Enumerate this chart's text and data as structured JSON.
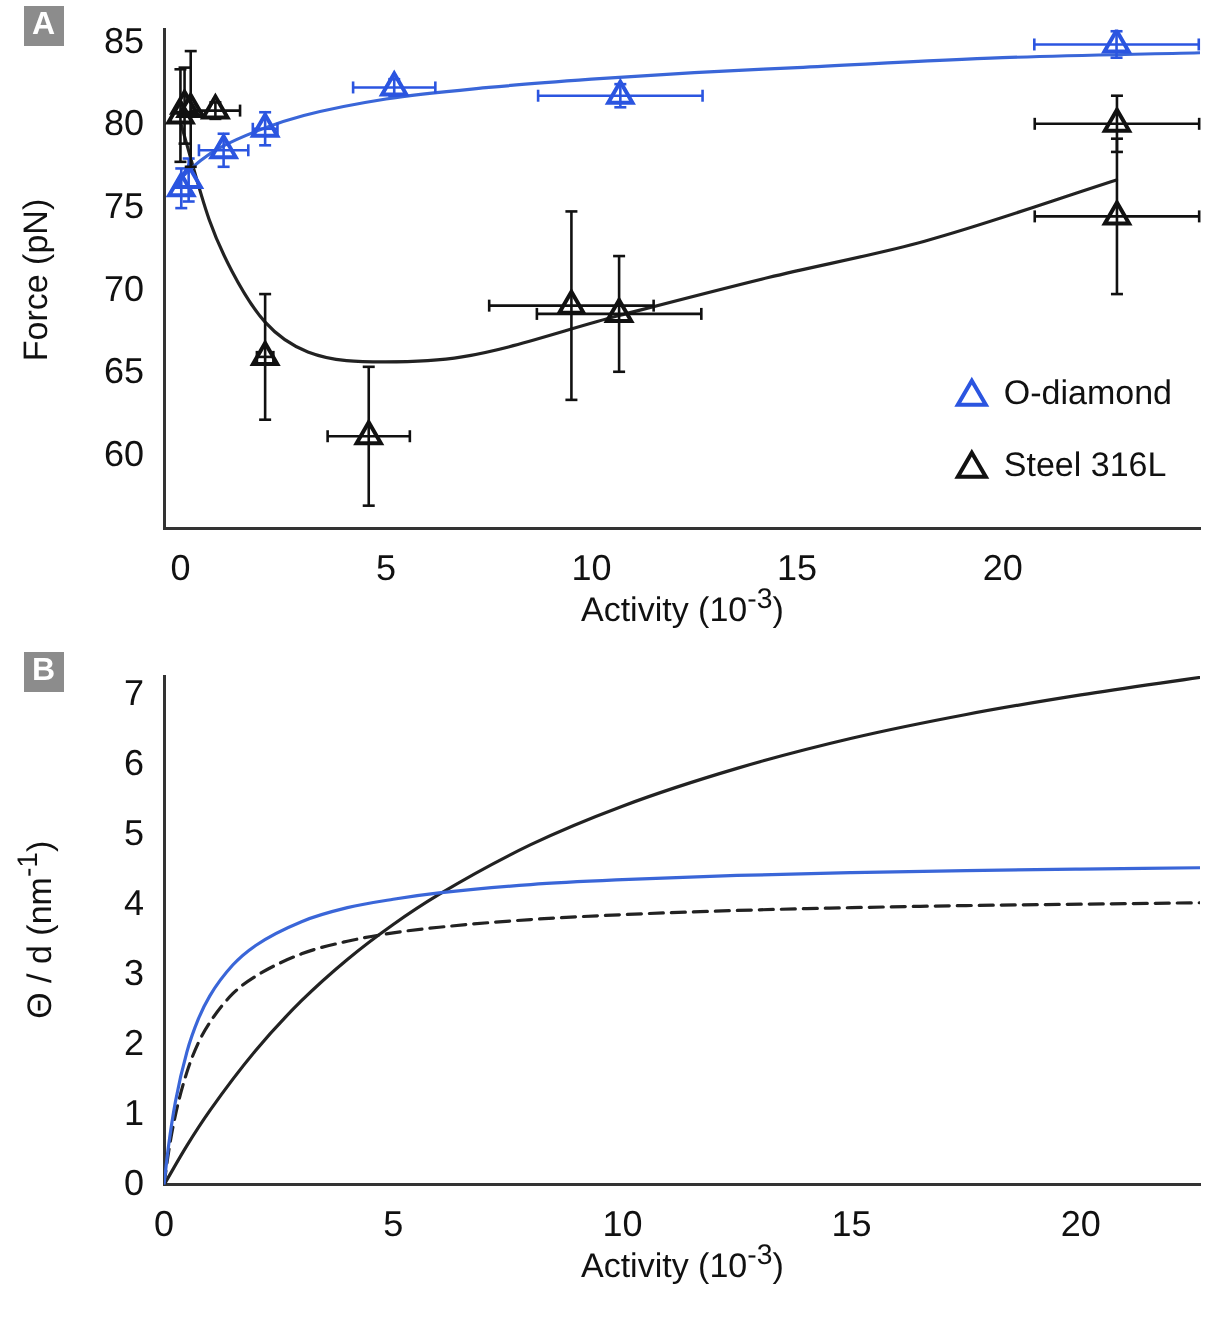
{
  "chart_data": [
    {
      "type": "scatter",
      "xlabel": "Activity (10$^{-3}$)",
      "ylabel": "Force (pN)",
      "annotations": [
        "A"
      ],
      "xlim": [
        -0.4,
        24.8
      ],
      "ylim": [
        55.6,
        85.8
      ],
      "xticks": [
        0,
        5,
        10,
        15,
        20
      ],
      "yticks": [
        60,
        65,
        70,
        75,
        80,
        85
      ],
      "legend": "bottom right",
      "series": [
        {
          "name": "O-diamond",
          "type": "scatter",
          "marker": "triangle",
          "color": "#2b55e0",
          "x": [
            0.02,
            0.2,
            1.05,
            2.06,
            5.2,
            10.7,
            22.77
          ],
          "values": [
            76.2,
            76.7,
            78.5,
            79.8,
            82.3,
            81.8,
            84.9
          ],
          "errors": [
            1.2,
            1.3,
            1.0,
            1.0,
            0.5,
            0.7,
            0.8
          ],
          "xerrors": [
            null,
            null,
            0.6,
            0.3,
            1.0,
            2.0,
            2.0
          ]
        },
        {
          "type": "line",
          "marker": "none",
          "color": "#3a66d8",
          "x": [
            0,
            0.5,
            1,
            2,
            3,
            5,
            7.5,
            10,
            12.5,
            15,
            20,
            24.8
          ],
          "values": [
            76.8,
            77.9,
            78.7,
            79.8,
            80.6,
            81.6,
            82.3,
            82.8,
            83.2,
            83.5,
            84.1,
            84.4
          ]
        },
        {
          "name": "Steel 316L",
          "type": "scatter",
          "marker": "triangle",
          "color": "#111111",
          "x": [
            0.0,
            0.1,
            0.25,
            0.85,
            2.06,
            4.58,
            9.51,
            10.67,
            22.78,
            22.78
          ],
          "values": [
            80.6,
            81.2,
            81.0,
            80.9,
            66.0,
            61.2,
            69.1,
            68.6,
            80.1,
            74.5
          ],
          "errors": [
            2.8,
            2.3,
            3.5,
            0.5,
            3.8,
            4.2,
            5.7,
            3.5,
            1.7,
            4.7
          ],
          "xerrors": [
            null,
            null,
            null,
            0.6,
            0.2,
            1.0,
            2.0,
            2.0,
            2.0,
            2.0
          ]
        },
        {
          "type": "line",
          "marker": "none",
          "color": "#222222",
          "x": [
            0,
            0.7,
            1.25,
            2.06,
            3.1,
            4.98,
            6.85,
            10.67,
            14.3,
            18.1,
            22.77
          ],
          "values": [
            80.2,
            74.3,
            71.2,
            68.1,
            66.3,
            65.7,
            66.0,
            68.5,
            70.8,
            73.0,
            76.7
          ]
        }
      ]
    },
    {
      "type": "line",
      "xlabel": "Activity (10$^{-3}$)",
      "ylabel": "Θ / d (nm$^{-1}$)",
      "annotations": [
        "B"
      ],
      "xlim": [
        0,
        22.6
      ],
      "ylim": [
        0,
        7.27
      ],
      "xticks": [
        0,
        5,
        10,
        15,
        20
      ],
      "yticks": [
        0,
        1,
        2,
        3,
        4,
        5,
        6,
        7
      ],
      "series": [
        {
          "color": "#3a66d8",
          "x": [
            0,
            0.1,
            0.25,
            0.5,
            0.75,
            1,
            1.5,
            2,
            3,
            4,
            5,
            6,
            8,
            10,
            12.5,
            15,
            17.5,
            20,
            22.6
          ],
          "values": [
            0,
            0.56,
            1.19,
            1.9,
            2.37,
            2.7,
            3.14,
            3.42,
            3.76,
            3.96,
            4.08,
            4.17,
            4.29,
            4.36,
            4.42,
            4.46,
            4.49,
            4.51,
            4.53
          ]
        },
        {
          "color": "#222222",
          "line_style": "dashed",
          "x": [
            0,
            0.1,
            0.25,
            0.5,
            0.75,
            1,
            1.5,
            2,
            3,
            4,
            5,
            6,
            8,
            10,
            12.5,
            15,
            17.5,
            20,
            22.6
          ],
          "values": [
            0,
            0.47,
            1.0,
            1.61,
            2.03,
            2.32,
            2.73,
            2.98,
            3.3,
            3.48,
            3.6,
            3.68,
            3.79,
            3.86,
            3.92,
            3.96,
            3.99,
            4.01,
            4.03
          ]
        },
        {
          "color": "#222222",
          "x": [
            0,
            0.5,
            1,
            2,
            3,
            4,
            5,
            6,
            8,
            10,
            12.5,
            15,
            17.5,
            20,
            22.6
          ],
          "values": [
            0,
            0.56,
            1.06,
            1.92,
            2.63,
            3.22,
            3.72,
            4.15,
            4.86,
            5.41,
            5.95,
            6.38,
            6.72,
            7.0,
            7.25
          ]
        }
      ]
    }
  ]
}
